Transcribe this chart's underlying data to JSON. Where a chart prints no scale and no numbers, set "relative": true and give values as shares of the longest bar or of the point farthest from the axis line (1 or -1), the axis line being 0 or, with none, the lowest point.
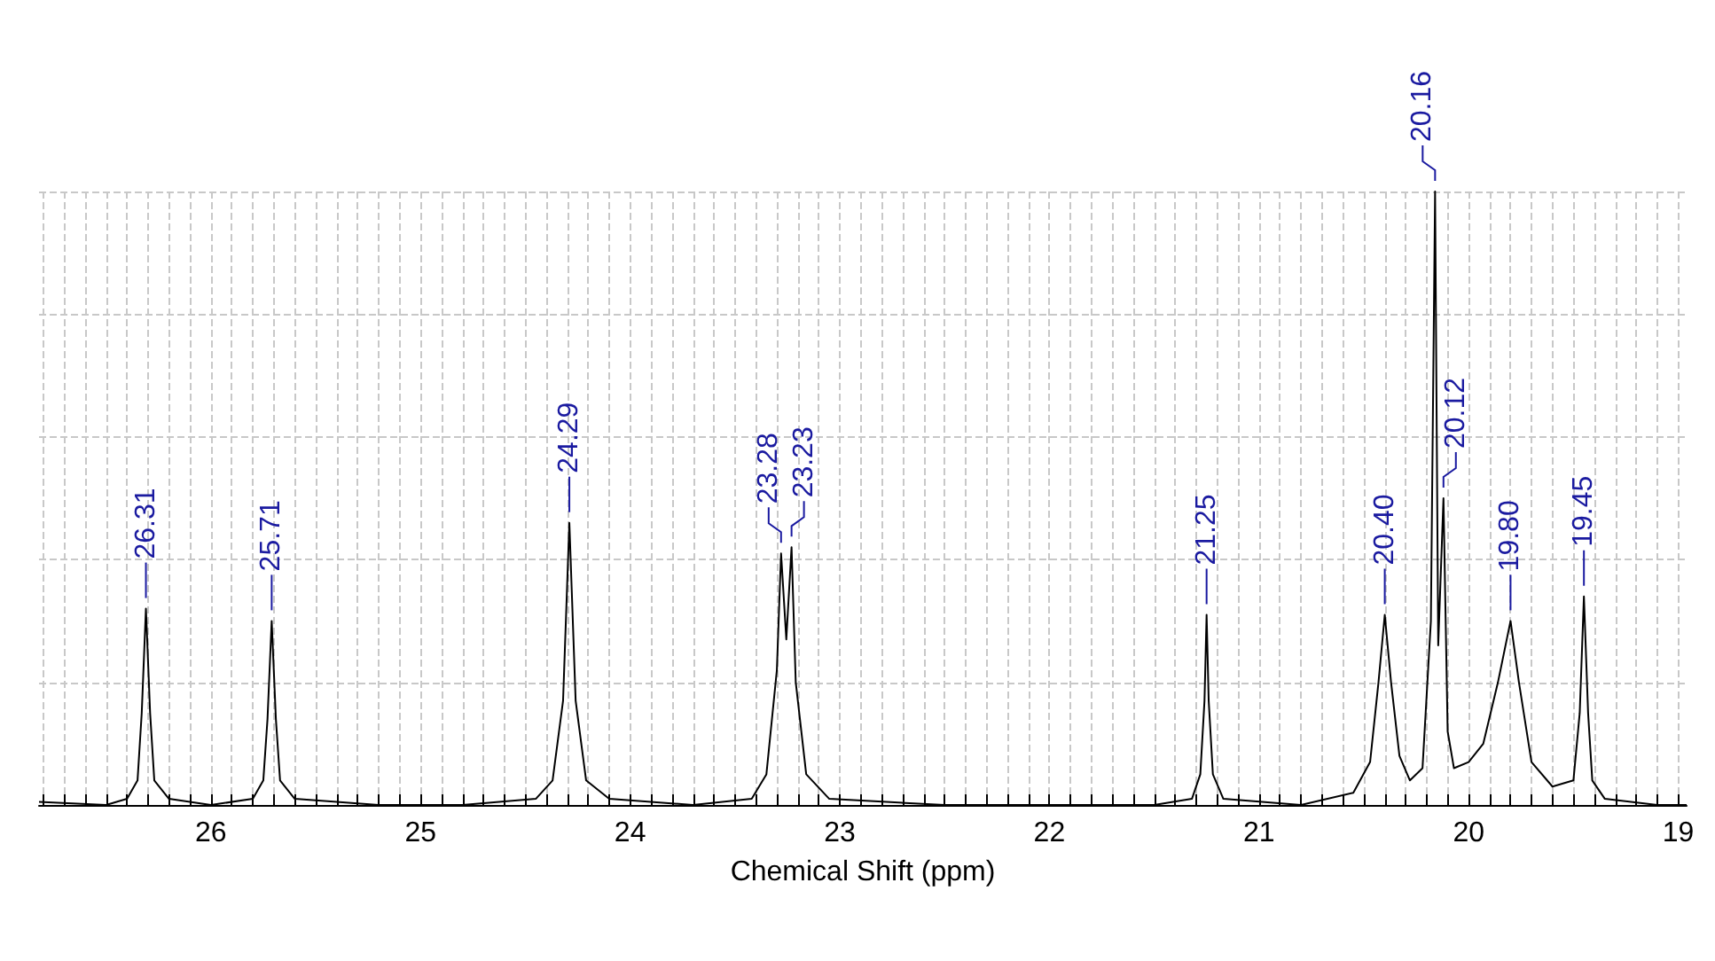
{
  "chart_data": {
    "type": "line",
    "relative": true,
    "xlabel": "Chemical Shift (ppm)",
    "color": "#000000",
    "grid": true,
    "line_style": "solid",
    "marker": "none",
    "xlim": [
      26.82,
      18.96
    ],
    "xticks": [
      19,
      20,
      21,
      22,
      23,
      24,
      25,
      26,
      {
        "value": 19.1,
        "label": null
      },
      {
        "value": 19.2,
        "label": null
      },
      {
        "value": 19.3,
        "label": null
      },
      {
        "value": 19.4,
        "label": null
      },
      {
        "value": 19.5,
        "label": null
      },
      {
        "value": 19.6,
        "label": null
      },
      {
        "value": 19.7,
        "label": null
      },
      {
        "value": 19.8,
        "label": null
      },
      {
        "value": 19.9,
        "label": null
      },
      {
        "value": 20.1,
        "label": null
      },
      {
        "value": 20.2,
        "label": null
      },
      {
        "value": 20.3,
        "label": null
      },
      {
        "value": 20.4,
        "label": null
      },
      {
        "value": 20.5,
        "label": null
      },
      {
        "value": 20.6,
        "label": null
      },
      {
        "value": 20.7,
        "label": null
      },
      {
        "value": 20.8,
        "label": null
      },
      {
        "value": 20.9,
        "label": null
      },
      {
        "value": 21.1,
        "label": null
      },
      {
        "value": 21.2,
        "label": null
      },
      {
        "value": 21.3,
        "label": null
      },
      {
        "value": 21.4,
        "label": null
      },
      {
        "value": 21.5,
        "label": null
      },
      {
        "value": 21.6,
        "label": null
      },
      {
        "value": 21.7,
        "label": null
      },
      {
        "value": 21.8,
        "label": null
      },
      {
        "value": 21.9,
        "label": null
      },
      {
        "value": 22.1,
        "label": null
      },
      {
        "value": 22.2,
        "label": null
      },
      {
        "value": 22.3,
        "label": null
      },
      {
        "value": 22.4,
        "label": null
      },
      {
        "value": 22.5,
        "label": null
      },
      {
        "value": 22.6,
        "label": null
      },
      {
        "value": 22.7,
        "label": null
      },
      {
        "value": 22.8,
        "label": null
      },
      {
        "value": 22.9,
        "label": null
      },
      {
        "value": 23.1,
        "label": null
      },
      {
        "value": 23.2,
        "label": null
      },
      {
        "value": 23.3,
        "label": null
      },
      {
        "value": 23.4,
        "label": null
      },
      {
        "value": 23.5,
        "label": null
      },
      {
        "value": 23.6,
        "label": null
      },
      {
        "value": 23.7,
        "label": null
      },
      {
        "value": 23.8,
        "label": null
      },
      {
        "value": 23.9,
        "label": null
      },
      {
        "value": 24.1,
        "label": null
      },
      {
        "value": 24.2,
        "label": null
      },
      {
        "value": 24.3,
        "label": null
      },
      {
        "value": 24.4,
        "label": null
      },
      {
        "value": 24.5,
        "label": null
      },
      {
        "value": 24.6,
        "label": null
      },
      {
        "value": 24.7,
        "label": null
      },
      {
        "value": 24.8,
        "label": null
      },
      {
        "value": 24.9,
        "label": null
      },
      {
        "value": 25.1,
        "label": null
      },
      {
        "value": 25.2,
        "label": null
      },
      {
        "value": 25.3,
        "label": null
      },
      {
        "value": 25.4,
        "label": null
      },
      {
        "value": 25.5,
        "label": null
      },
      {
        "value": 25.6,
        "label": null
      },
      {
        "value": 25.7,
        "label": null
      },
      {
        "value": 25.8,
        "label": null
      },
      {
        "value": 25.9,
        "label": null
      },
      {
        "value": 26.1,
        "label": null
      },
      {
        "value": 26.2,
        "label": null
      },
      {
        "value": 26.3,
        "label": null
      },
      {
        "value": 26.4,
        "label": null
      },
      {
        "value": 26.5,
        "label": null
      },
      {
        "value": 26.6,
        "label": null
      },
      {
        "value": 26.7,
        "label": null
      },
      {
        "value": 26.8,
        "label": null
      }
    ],
    "x": [
      26.82,
      26.5,
      26.4,
      26.35,
      26.33,
      26.31,
      26.29,
      26.27,
      26.2,
      26.0,
      25.8,
      25.75,
      25.73,
      25.71,
      25.69,
      25.67,
      25.6,
      25.2,
      24.8,
      24.45,
      24.37,
      24.32,
      24.29,
      24.26,
      24.21,
      24.1,
      23.7,
      23.42,
      23.35,
      23.3,
      23.28,
      23.255,
      23.23,
      23.21,
      23.16,
      23.05,
      22.5,
      22.0,
      21.5,
      21.32,
      21.28,
      21.26,
      21.25,
      21.24,
      21.22,
      21.17,
      20.8,
      20.55,
      20.47,
      20.43,
      20.4,
      20.37,
      20.33,
      20.28,
      20.22,
      20.18,
      20.16,
      20.145,
      20.12,
      20.1,
      20.07,
      20.0,
      19.93,
      19.86,
      19.8,
      19.76,
      19.7,
      19.6,
      19.5,
      19.47,
      19.45,
      19.43,
      19.41,
      19.35,
      19.1,
      18.96
    ],
    "values": [
      0.005,
      0,
      0.01,
      0.04,
      0.15,
      0.32,
      0.15,
      0.04,
      0.01,
      0,
      0.01,
      0.04,
      0.14,
      0.3,
      0.14,
      0.04,
      0.01,
      0,
      0,
      0.01,
      0.04,
      0.17,
      0.46,
      0.17,
      0.04,
      0.01,
      0,
      0.01,
      0.05,
      0.22,
      0.41,
      0.27,
      0.42,
      0.2,
      0.05,
      0.01,
      0,
      0,
      0,
      0.01,
      0.05,
      0.17,
      0.31,
      0.17,
      0.05,
      0.01,
      0,
      0.02,
      0.07,
      0.2,
      0.31,
      0.2,
      0.08,
      0.04,
      0.06,
      0.3,
      1,
      0.26,
      0.5,
      0.12,
      0.06,
      0.07,
      0.1,
      0.2,
      0.3,
      0.2,
      0.07,
      0.03,
      0.04,
      0.15,
      0.34,
      0.15,
      0.04,
      0.01,
      0,
      0
    ],
    "annotations": [
      {
        "text": "26.31",
        "x": 26.31,
        "y": 0.32
      },
      {
        "text": "25.71",
        "x": 25.71,
        "y": 0.3
      },
      {
        "text": "24.29",
        "x": 24.29,
        "y": 0.46
      },
      {
        "text": "23.28",
        "x": 23.28,
        "y": 0.41
      },
      {
        "text": "23.23",
        "x": 23.23,
        "y": 0.42
      },
      {
        "text": "21.25",
        "x": 21.25,
        "y": 0.31
      },
      {
        "text": "20.40",
        "x": 20.4,
        "y": 0.31
      },
      {
        "text": "20.16",
        "x": 20.16,
        "y": 1
      },
      {
        "text": "20.12",
        "x": 20.12,
        "y": 0.5
      },
      {
        "text": "19.80",
        "x": 19.8,
        "y": 0.3
      },
      {
        "text": "19.45",
        "x": 19.45,
        "y": 0.34
      }
    ]
  }
}
